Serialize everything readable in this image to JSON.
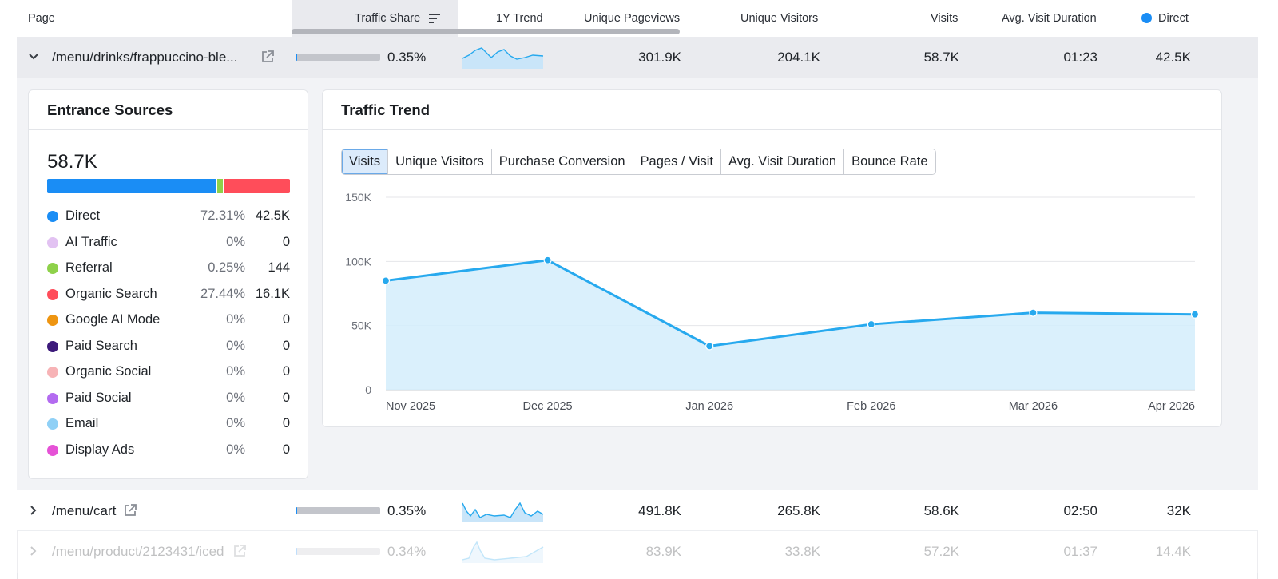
{
  "columns": {
    "page": "Page",
    "traffic_share": "Traffic Share",
    "trend": "1Y Trend",
    "unique_pageviews": "Unique Pageviews",
    "unique_visitors": "Unique Visitors",
    "visits": "Visits",
    "avg_visit_duration": "Avg. Visit Duration",
    "direct": "Direct"
  },
  "colors": {
    "direct": "#1a8df5",
    "referral": "#8ed14a",
    "organic_search": "#ff4d5a",
    "chart_line": "#27a9ee",
    "chart_fill": "#d3edfb"
  },
  "rows": [
    {
      "page": "/menu/drinks/frappuccino-ble...",
      "share": "0.35%",
      "share_value": 0.0035,
      "unique_pageviews": "301.9K",
      "unique_visitors": "204.1K",
      "visits": "58.7K",
      "avg_visit_duration": "01:23",
      "direct": "42.5K",
      "expanded": true
    },
    {
      "page": "/menu/cart",
      "share": "0.35%",
      "share_value": 0.0035,
      "unique_pageviews": "491.8K",
      "unique_visitors": "265.8K",
      "visits": "58.6K",
      "avg_visit_duration": "02:50",
      "direct": "32K",
      "expanded": false
    },
    {
      "page": "/menu/product/2123431/iced",
      "share": "0.34%",
      "share_value": 0.0034,
      "unique_pageviews": "83.9K",
      "unique_visitors": "33.8K",
      "visits": "57.2K",
      "avg_visit_duration": "01:37",
      "direct": "14.4K",
      "expanded": false
    }
  ],
  "entrance_sources": {
    "title": "Entrance Sources",
    "total": "58.7K",
    "sources": [
      {
        "label": "Direct",
        "pct": "72.31%",
        "value": "42.5K",
        "color": "#1a8df5"
      },
      {
        "label": "AI Traffic",
        "pct": "0%",
        "value": "0",
        "color": "#e2c2f2"
      },
      {
        "label": "Referral",
        "pct": "0.25%",
        "value": "144",
        "color": "#8ed14a"
      },
      {
        "label": "Organic Search",
        "pct": "27.44%",
        "value": "16.1K",
        "color": "#ff4d5a"
      },
      {
        "label": "Google AI Mode",
        "pct": "0%",
        "value": "0",
        "color": "#ee9511"
      },
      {
        "label": "Paid Search",
        "pct": "0%",
        "value": "0",
        "color": "#3c1a7a"
      },
      {
        "label": "Organic Social",
        "pct": "0%",
        "value": "0",
        "color": "#f7b3b6"
      },
      {
        "label": "Paid Social",
        "pct": "0%",
        "value": "0",
        "color": "#b36bf0"
      },
      {
        "label": "Email",
        "pct": "0%",
        "value": "0",
        "color": "#8fd0f6"
      },
      {
        "label": "Display Ads",
        "pct": "0%",
        "value": "0",
        "color": "#e552d6"
      }
    ]
  },
  "traffic_trend": {
    "title": "Traffic Trend",
    "tabs": [
      "Visits",
      "Unique Visitors",
      "Purchase Conversion",
      "Pages / Visit",
      "Avg. Visit Duration",
      "Bounce Rate"
    ],
    "active_tab": "Visits"
  },
  "chart_data": {
    "type": "area",
    "x": [
      "Nov 2025",
      "Dec 2025",
      "Jan 2026",
      "Feb 2026",
      "Mar 2026",
      "Apr 2026"
    ],
    "series": [
      {
        "values": [
          85000,
          101000,
          34000,
          51000,
          60000,
          58700
        ]
      }
    ],
    "ylim": [
      0,
      150000
    ],
    "yticks": [
      0,
      50000,
      100000,
      150000
    ],
    "ytick_labels": [
      "0",
      "50K",
      "100K",
      "150K"
    ],
    "grid": true
  }
}
